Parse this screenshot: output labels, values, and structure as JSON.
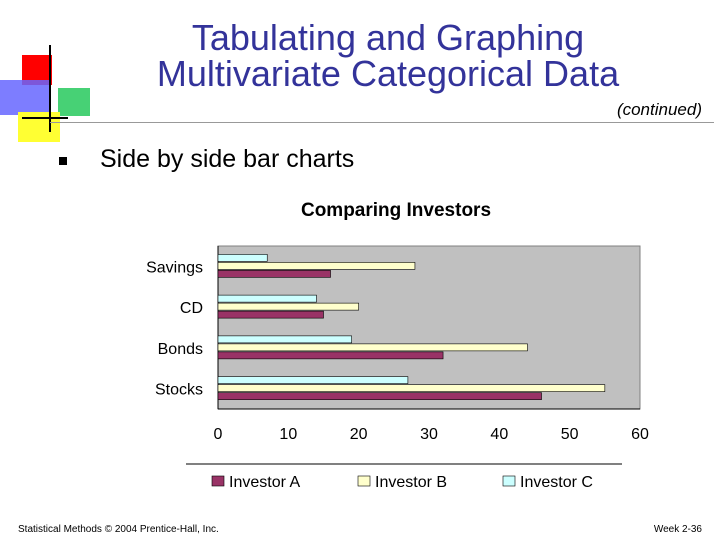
{
  "slide": {
    "title_line1": "Tabulating and Graphing",
    "title_line2": "Multivariate Categorical Data",
    "continued": "(continued)",
    "bullet": "Side by side bar charts",
    "footer_left": "Statistical Methods © 2004 Prentice-Hall, Inc.",
    "footer_right": "Week 2-36"
  },
  "colors": {
    "title": "#33339a",
    "plot_bg": "#c0c0c0",
    "investor_a": "#993366",
    "investor_b": "#ffffcc",
    "investor_c": "#ccffff"
  },
  "chart_data": {
    "type": "bar",
    "orientation": "horizontal",
    "title": "Comparing Investors",
    "categories": [
      "Stocks",
      "Bonds",
      "CD",
      "Savings"
    ],
    "series": [
      {
        "name": "Investor A",
        "values": [
          46,
          32,
          15,
          16
        ]
      },
      {
        "name": "Investor B",
        "values": [
          55,
          44,
          20,
          28
        ]
      },
      {
        "name": "Investor C",
        "values": [
          27,
          19,
          14,
          7
        ]
      }
    ],
    "xlim": [
      0,
      60
    ],
    "xticks": [
      0,
      10,
      20,
      30,
      40,
      50,
      60
    ],
    "grid": false,
    "legend": "bottom"
  }
}
